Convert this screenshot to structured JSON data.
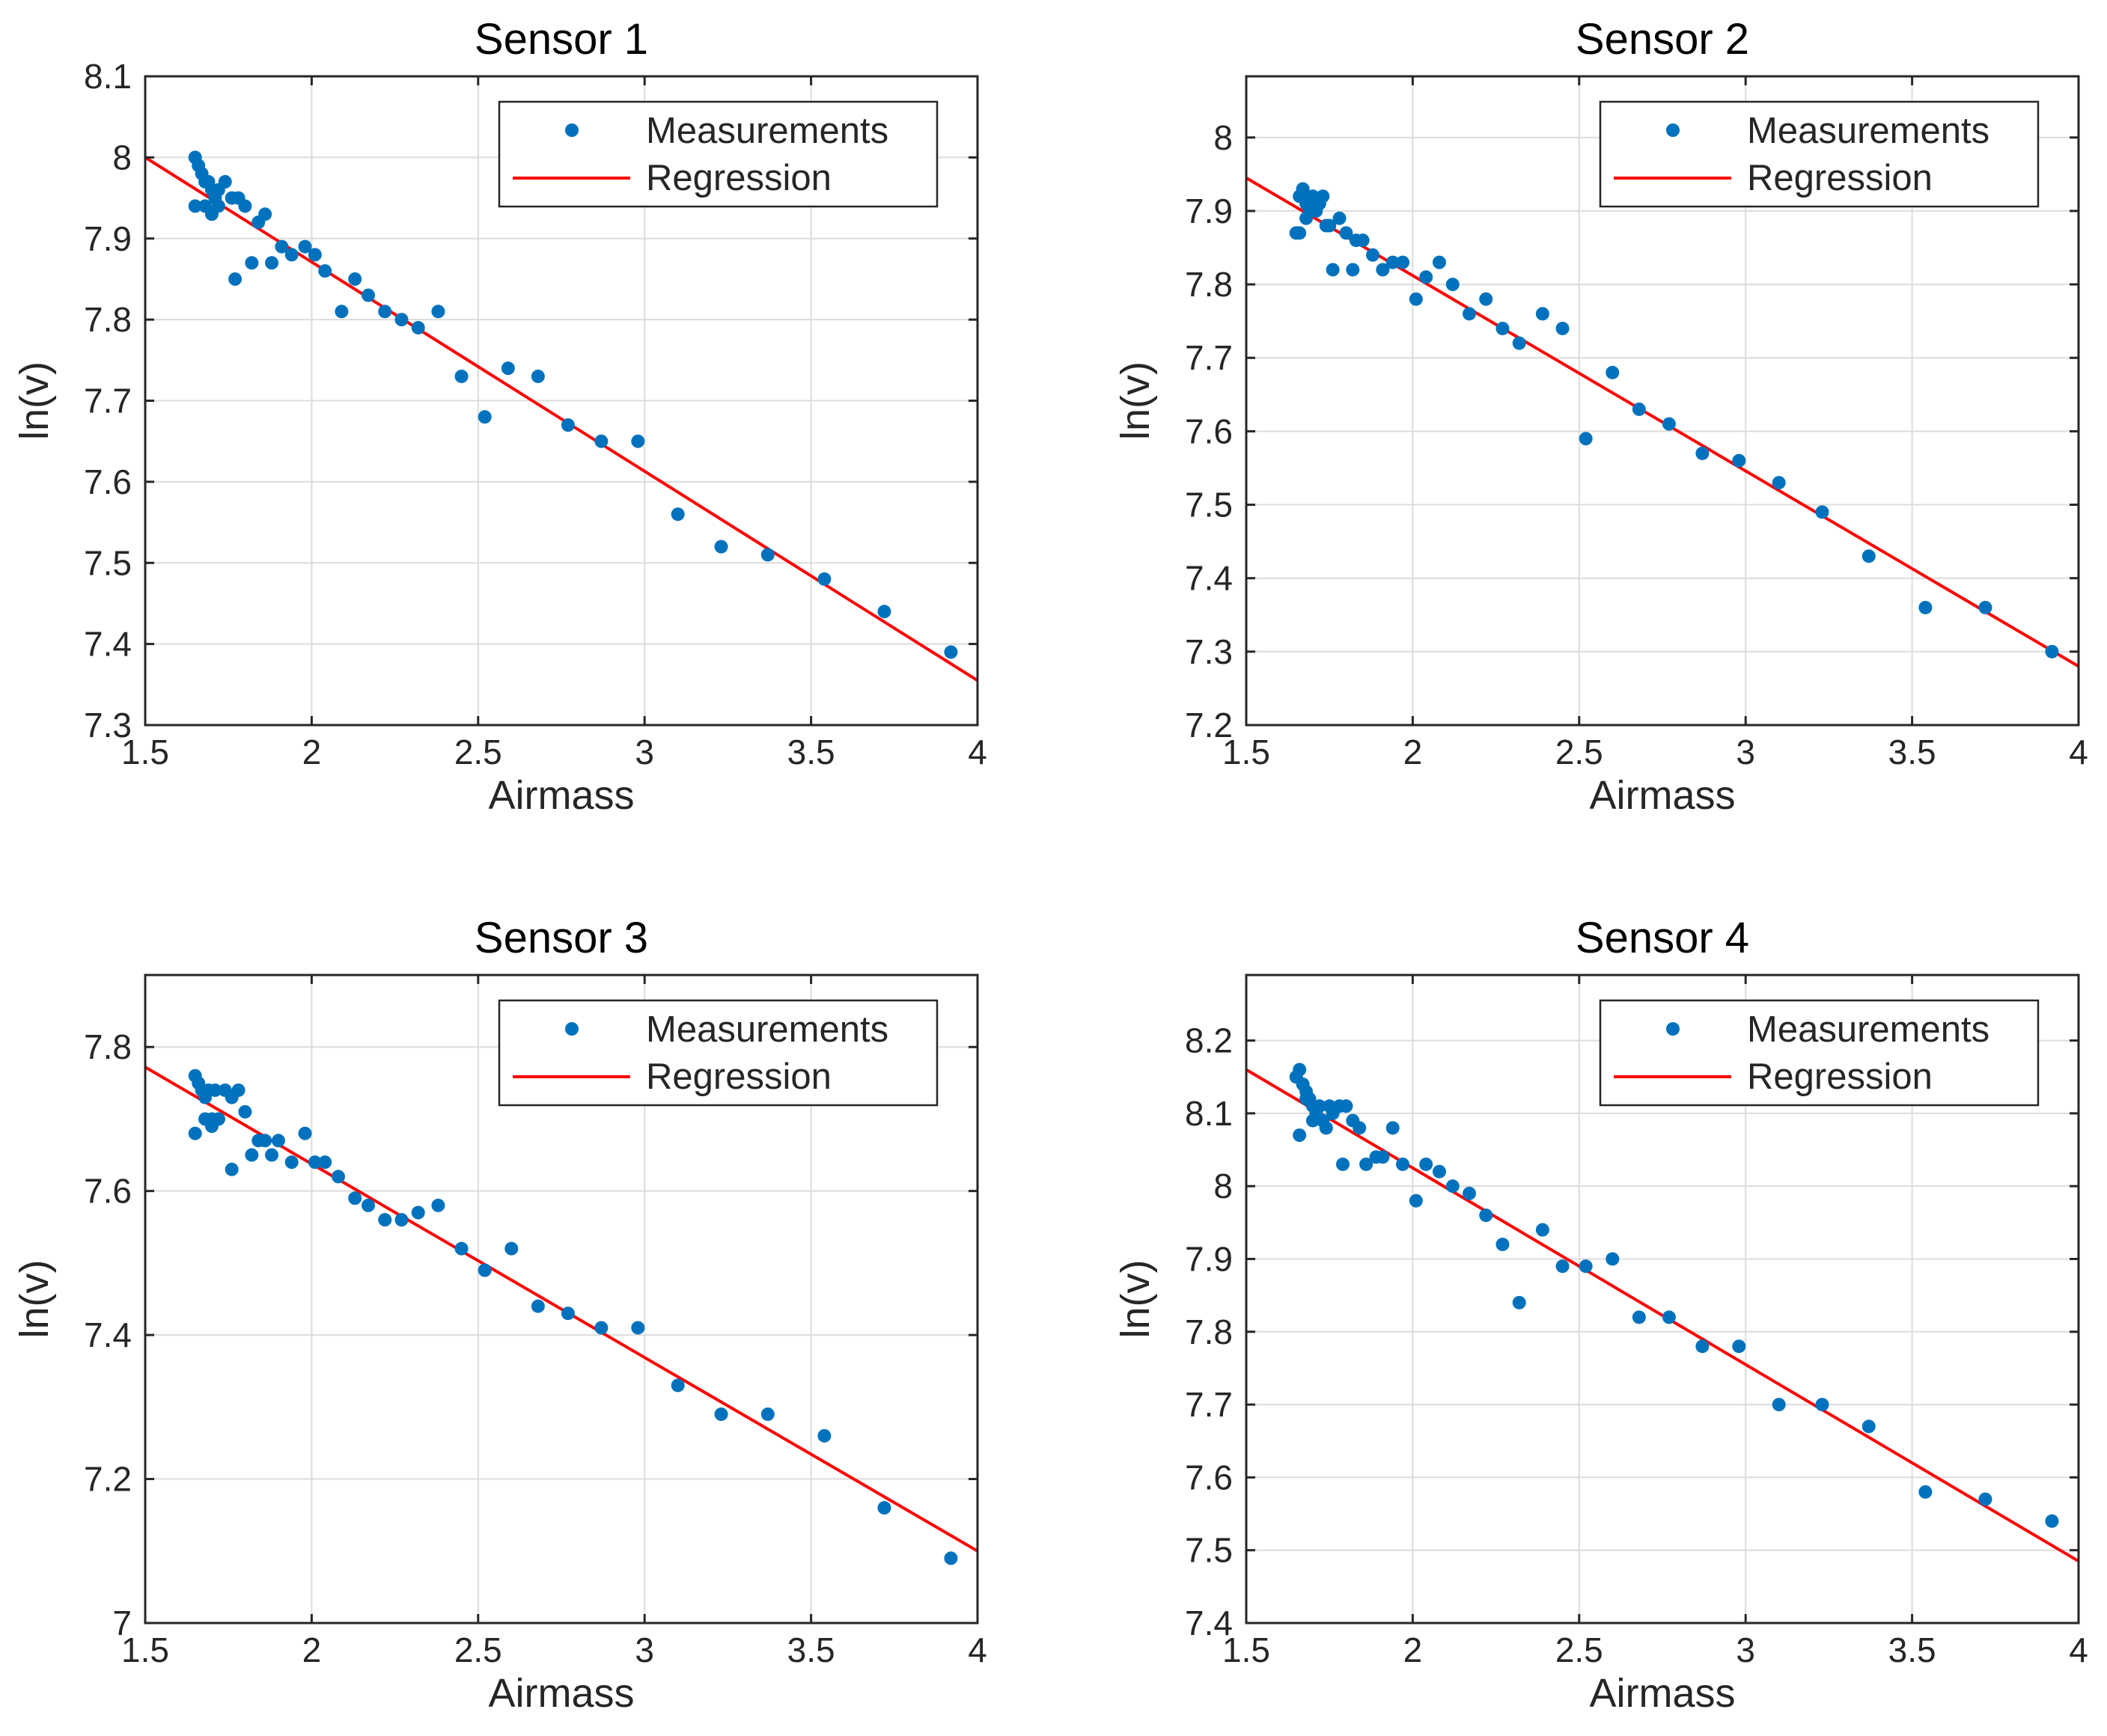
{
  "figure": {
    "rows": 2,
    "cols": 2
  },
  "colors": {
    "measurements": "#0072BD",
    "regression": "#FF0000",
    "axis": "#262626",
    "grid": "#DCDCDC"
  },
  "chart_data": [
    {
      "type": "scatter",
      "title": "Sensor 1",
      "xlabel": "Airmass",
      "ylabel": "ln(v)",
      "xlim": [
        1.5,
        4
      ],
      "ylim": [
        7.3,
        8.1
      ],
      "xticks": [
        1.5,
        2,
        2.5,
        3,
        3.5,
        4
      ],
      "xtick_labels": [
        "1.5",
        "2",
        "2.5",
        "3",
        "3.5",
        "4"
      ],
      "yticks": [
        7.3,
        7.4,
        7.5,
        7.6,
        7.7,
        7.8,
        7.9,
        8.0,
        8.1
      ],
      "ytick_labels": [
        "7.3",
        "7.4",
        "7.5",
        "7.6",
        "7.7",
        "7.8",
        "7.9",
        "8",
        "8.1"
      ],
      "grid": true,
      "legend": {
        "position": "top-right",
        "entries": [
          "Measurements",
          "Regression"
        ]
      },
      "series": [
        {
          "name": "Measurements",
          "kind": "scatter",
          "x": [
            1.65,
            1.66,
            1.67,
            1.68,
            1.69,
            1.7,
            1.71,
            1.72,
            1.74,
            1.76,
            1.78,
            1.8,
            1.84,
            1.86,
            1.65,
            1.68,
            1.7,
            1.72,
            1.77,
            1.82,
            1.88,
            1.91,
            1.94,
            1.98,
            2.01,
            2.04,
            2.09,
            2.13,
            2.17,
            2.22,
            2.27,
            2.32,
            2.38,
            2.45,
            2.52,
            2.59,
            2.68,
            2.77,
            2.87,
            2.98,
            3.1,
            3.23,
            3.37,
            3.54,
            3.72,
            3.92
          ],
          "y": [
            8.0,
            7.99,
            7.98,
            7.97,
            7.97,
            7.96,
            7.95,
            7.96,
            7.97,
            7.95,
            7.95,
            7.94,
            7.92,
            7.93,
            7.94,
            7.94,
            7.93,
            7.94,
            7.85,
            7.87,
            7.87,
            7.89,
            7.88,
            7.89,
            7.88,
            7.86,
            7.81,
            7.85,
            7.83,
            7.81,
            7.8,
            7.79,
            7.81,
            7.73,
            7.68,
            7.74,
            7.73,
            7.67,
            7.65,
            7.65,
            7.56,
            7.52,
            7.51,
            7.48,
            7.44,
            7.39
          ]
        },
        {
          "name": "Regression",
          "kind": "line",
          "x": [
            1.5,
            4.0
          ],
          "y": [
            8.0,
            7.355
          ]
        }
      ]
    },
    {
      "type": "scatter",
      "title": "Sensor 2",
      "xlabel": "Airmass",
      "ylabel": "ln(v)",
      "xlim": [
        1.5,
        4
      ],
      "ylim": [
        7.2,
        8.0833
      ],
      "xticks": [
        1.5,
        2,
        2.5,
        3,
        3.5,
        4
      ],
      "xtick_labels": [
        "1.5",
        "2",
        "2.5",
        "3",
        "3.5",
        "4"
      ],
      "yticks": [
        7.2,
        7.3,
        7.4,
        7.5,
        7.6,
        7.7,
        7.8,
        7.9,
        8.0
      ],
      "ytick_labels": [
        "7.2",
        "7.3",
        "7.4",
        "7.5",
        "7.6",
        "7.7",
        "7.8",
        "7.9",
        "8"
      ],
      "grid": true,
      "legend": {
        "position": "top-right",
        "entries": [
          "Measurements",
          "Regression"
        ]
      },
      "series": [
        {
          "name": "Measurements",
          "kind": "scatter",
          "x": [
            1.65,
            1.66,
            1.67,
            1.68,
            1.69,
            1.7,
            1.71,
            1.72,
            1.73,
            1.74,
            1.75,
            1.78,
            1.8,
            1.83,
            1.85,
            1.66,
            1.68,
            1.7,
            1.76,
            1.82,
            1.88,
            1.91,
            1.94,
            1.97,
            2.01,
            2.04,
            2.08,
            2.12,
            2.17,
            2.22,
            2.27,
            2.32,
            2.39,
            2.45,
            2.52,
            2.6,
            2.68,
            2.77,
            2.87,
            2.98,
            3.1,
            3.23,
            3.37,
            3.54,
            3.72,
            3.92
          ],
          "y": [
            7.87,
            7.92,
            7.93,
            7.91,
            7.9,
            7.92,
            7.9,
            7.91,
            7.92,
            7.88,
            7.88,
            7.89,
            7.87,
            7.86,
            7.86,
            7.87,
            7.89,
            7.91,
            7.82,
            7.82,
            7.84,
            7.82,
            7.83,
            7.83,
            7.78,
            7.81,
            7.83,
            7.8,
            7.76,
            7.78,
            7.74,
            7.72,
            7.76,
            7.74,
            7.59,
            7.68,
            7.63,
            7.61,
            7.57,
            7.56,
            7.53,
            7.49,
            7.43,
            7.36,
            7.36,
            7.3
          ]
        },
        {
          "name": "Regression",
          "kind": "line",
          "x": [
            1.5,
            4.0
          ],
          "y": [
            7.945,
            7.28
          ]
        }
      ]
    },
    {
      "type": "scatter",
      "title": "Sensor 3",
      "xlabel": "Airmass",
      "ylabel": "ln(v)",
      "xlim": [
        1.5,
        4
      ],
      "ylim": [
        7.0,
        7.9
      ],
      "xticks": [
        1.5,
        2,
        2.5,
        3,
        3.5,
        4
      ],
      "xtick_labels": [
        "1.5",
        "2",
        "2.5",
        "3",
        "3.5",
        "4"
      ],
      "yticks": [
        7.0,
        7.2,
        7.4,
        7.6,
        7.8
      ],
      "ytick_labels": [
        "7",
        "7.2",
        "7.4",
        "7.6",
        "7.8"
      ],
      "grid": true,
      "legend": {
        "position": "top-right",
        "entries": [
          "Measurements",
          "Regression"
        ]
      },
      "series": [
        {
          "name": "Measurements",
          "kind": "scatter",
          "x": [
            1.65,
            1.66,
            1.67,
            1.68,
            1.69,
            1.7,
            1.71,
            1.72,
            1.74,
            1.76,
            1.78,
            1.8,
            1.84,
            1.88,
            1.65,
            1.68,
            1.7,
            1.72,
            1.76,
            1.82,
            1.86,
            1.9,
            1.94,
            1.98,
            2.01,
            2.04,
            2.08,
            2.13,
            2.17,
            2.22,
            2.27,
            2.32,
            2.38,
            2.45,
            2.52,
            2.6,
            2.68,
            2.77,
            2.87,
            2.98,
            3.1,
            3.23,
            3.37,
            3.54,
            3.72,
            3.92
          ],
          "y": [
            7.76,
            7.75,
            7.74,
            7.73,
            7.74,
            7.7,
            7.74,
            7.7,
            7.74,
            7.73,
            7.74,
            7.71,
            7.67,
            7.65,
            7.68,
            7.7,
            7.69,
            7.7,
            7.63,
            7.65,
            7.67,
            7.67,
            7.64,
            7.68,
            7.64,
            7.64,
            7.62,
            7.59,
            7.58,
            7.56,
            7.56,
            7.57,
            7.58,
            7.52,
            7.49,
            7.52,
            7.44,
            7.43,
            7.41,
            7.41,
            7.33,
            7.29,
            7.29,
            7.26,
            7.16,
            7.09
          ]
        },
        {
          "name": "Regression",
          "kind": "line",
          "x": [
            1.5,
            4.0
          ],
          "y": [
            7.772,
            7.1
          ]
        }
      ]
    },
    {
      "type": "scatter",
      "title": "Sensor 4",
      "xlabel": "Airmass",
      "ylabel": "ln(v)",
      "xlim": [
        1.5,
        4
      ],
      "ylim": [
        7.4,
        8.29
      ],
      "xticks": [
        1.5,
        2,
        2.5,
        3,
        3.5,
        4
      ],
      "xtick_labels": [
        "1.5",
        "2",
        "2.5",
        "3",
        "3.5",
        "4"
      ],
      "yticks": [
        7.4,
        7.5,
        7.6,
        7.7,
        7.8,
        7.9,
        8.0,
        8.1,
        8.2
      ],
      "ytick_labels": [
        "7.4",
        "7.5",
        "7.6",
        "7.7",
        "7.8",
        "7.9",
        "8",
        "8.1",
        "8.2"
      ],
      "grid": true,
      "legend": {
        "position": "top-right",
        "entries": [
          "Measurements",
          "Regression"
        ]
      },
      "series": [
        {
          "name": "Measurements",
          "kind": "scatter",
          "x": [
            1.65,
            1.66,
            1.67,
            1.68,
            1.69,
            1.7,
            1.71,
            1.72,
            1.73,
            1.74,
            1.75,
            1.76,
            1.78,
            1.8,
            1.82,
            1.84,
            1.66,
            1.68,
            1.7,
            1.74,
            1.79,
            1.86,
            1.89,
            1.91,
            1.94,
            1.97,
            2.01,
            2.04,
            2.08,
            2.12,
            2.17,
            2.22,
            2.27,
            2.32,
            2.39,
            2.45,
            2.52,
            2.6,
            2.68,
            2.77,
            2.87,
            2.98,
            3.1,
            3.23,
            3.37,
            3.54,
            3.72,
            3.92
          ],
          "y": [
            8.15,
            8.16,
            8.14,
            8.13,
            8.12,
            8.11,
            8.1,
            8.11,
            8.09,
            8.08,
            8.11,
            8.1,
            8.11,
            8.11,
            8.09,
            8.08,
            8.07,
            8.12,
            8.09,
            8.08,
            8.03,
            8.03,
            8.04,
            8.04,
            8.08,
            8.03,
            7.98,
            8.03,
            8.02,
            8.0,
            7.99,
            7.96,
            7.92,
            7.84,
            7.94,
            7.89,
            7.89,
            7.9,
            7.82,
            7.82,
            7.78,
            7.78,
            7.7,
            7.7,
            7.67,
            7.58,
            7.57,
            7.54
          ]
        },
        {
          "name": "Regression",
          "kind": "line",
          "x": [
            1.5,
            4.0
          ],
          "y": [
            8.16,
            7.485
          ]
        }
      ]
    }
  ]
}
